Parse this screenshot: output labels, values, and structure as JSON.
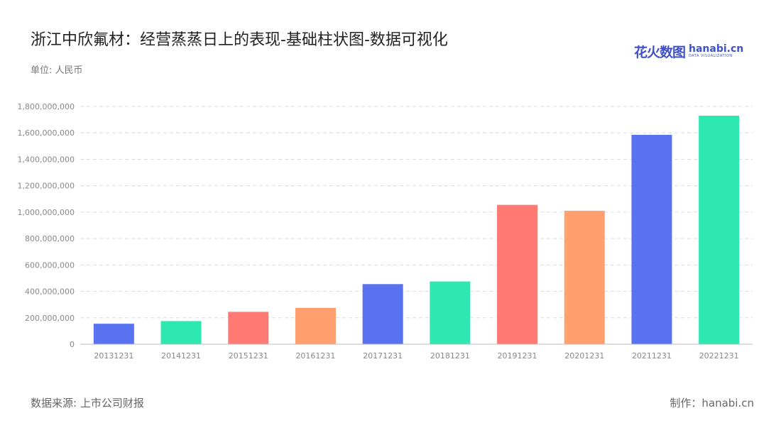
{
  "header": {
    "title": "浙江中欣氟材：经营蒸蒸日上的表现-基础柱状图-数据可视化",
    "unit": "单位: 人民币"
  },
  "logo": {
    "cn": "花火数图",
    "en": "hanabi.cn",
    "sub": "DATA VISUALIZATION"
  },
  "footer": {
    "source": "数据来源: 上市公司财报",
    "credit": "制作：hanabi.cn"
  },
  "colors": {
    "palette": [
      "#5872f0",
      "#2de8b0",
      "#ff7a72",
      "#ffa06e"
    ],
    "logo": "#3f51c5"
  },
  "chart_data": {
    "type": "bar",
    "categories": [
      "20131231",
      "20141231",
      "20151231",
      "20161231",
      "20171231",
      "20181231",
      "20191231",
      "20201231",
      "20211231",
      "20221231"
    ],
    "values": [
      155000000,
      175000000,
      245000000,
      275000000,
      455000000,
      475000000,
      1055000000,
      1010000000,
      1585000000,
      1730000000
    ],
    "ylim": [
      0,
      1800000000
    ],
    "yticks": [
      "0",
      "200,000,000",
      "400,000,000",
      "600,000,000",
      "800,000,000",
      "1,000,000,000",
      "1,200,000,000",
      "1,400,000,000",
      "1,600,000,000",
      "1,800,000,000"
    ],
    "grid": true
  }
}
